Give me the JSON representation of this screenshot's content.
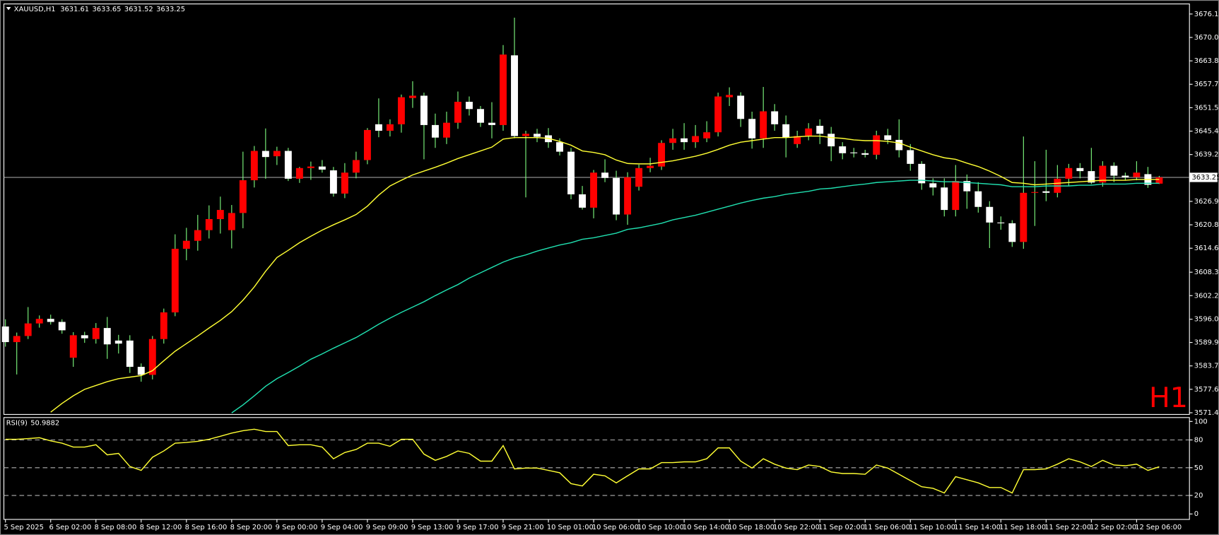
{
  "chart_data": [
    {
      "type": "candlestick",
      "symbol": "XAUUSD,H1",
      "timeframe_label": "H1",
      "up_color": "#ff0000",
      "down_color": "#ffffff",
      "wick_color": "#80ff80",
      "price_line_color": "#b0b0b0",
      "categories": [
        "5 Sep 2025",
        null,
        null,
        null,
        "6 Sep 02:00",
        null,
        null,
        null,
        "8 Sep 08:00",
        null,
        null,
        null,
        "8 Sep 12:00",
        null,
        null,
        null,
        "8 Sep 16:00",
        null,
        null,
        null,
        "8 Sep 20:00",
        null,
        null,
        null,
        "9 Sep 00:00",
        null,
        null,
        null,
        "9 Sep 04:00",
        null,
        null,
        null,
        "9 Sep 09:00",
        null,
        null,
        null,
        "9 Sep 13:00",
        null,
        null,
        null,
        "9 Sep 17:00",
        null,
        null,
        null,
        "9 Sep 21:00",
        null,
        null,
        null,
        "10 Sep 01:00",
        null,
        null,
        null,
        "10 Sep 06:00",
        null,
        null,
        null,
        "10 Sep 10:00",
        null,
        null,
        null,
        "10 Sep 14:00",
        null,
        null,
        null,
        "10 Sep 18:00",
        null,
        null,
        null,
        "10 Sep 22:00",
        null,
        null,
        null,
        "11 Sep 02:00",
        null,
        null,
        null,
        "11 Sep 06:00",
        null,
        null,
        null,
        "11 Sep 10:00",
        null,
        null,
        null,
        "11 Sep 14:00",
        null,
        null,
        null,
        "11 Sep 18:00",
        null,
        null,
        null,
        "11 Sep 22:00",
        null,
        null,
        null,
        "12 Sep 02:00",
        null,
        null,
        null,
        "12 Sep 06:00",
        null,
        null
      ],
      "ohlc": [
        [
          3594.1,
          3596.0,
          3588.8,
          3590.0
        ],
        [
          3590.0,
          3592.5,
          3581.5,
          3591.6
        ],
        [
          3591.6,
          3599.2,
          3590.8,
          3594.9
        ],
        [
          3594.9,
          3597.0,
          3593.8,
          3596.1
        ],
        [
          3596.1,
          3597.2,
          3594.6,
          3595.3
        ],
        [
          3595.3,
          3596.0,
          3592.2,
          3593.1
        ],
        [
          3585.9,
          3592.6,
          3583.5,
          3591.8
        ],
        [
          3591.8,
          3592.7,
          3589.8,
          3591.0
        ],
        [
          3590.8,
          3595.0,
          3589.6,
          3593.7
        ],
        [
          3593.7,
          3596.6,
          3585.6,
          3589.4
        ],
        [
          3590.4,
          3591.9,
          3587.0,
          3589.6
        ],
        [
          3590.4,
          3591.8,
          3581.9,
          3583.5
        ],
        [
          3583.5,
          3584.4,
          3579.6,
          3581.4
        ],
        [
          3581.4,
          3591.6,
          3580.2,
          3590.8
        ],
        [
          3590.8,
          3598.8,
          3589.6,
          3597.8
        ],
        [
          3597.8,
          3618.3,
          3596.8,
          3614.5
        ],
        [
          3614.5,
          3620.0,
          3611.5,
          3616.6
        ],
        [
          3616.6,
          3623.4,
          3614.0,
          3619.4
        ],
        [
          3619.4,
          3625.9,
          3617.2,
          3622.3
        ],
        [
          3622.3,
          3628.2,
          3618.5,
          3624.7
        ],
        [
          3619.4,
          3626.0,
          3614.6,
          3623.9
        ],
        [
          3623.9,
          3640.0,
          3619.9,
          3632.5
        ],
        [
          3632.5,
          3641.5,
          3630.6,
          3640.2
        ],
        [
          3640.2,
          3646.1,
          3632.9,
          3638.6
        ],
        [
          3638.8,
          3641.3,
          3636.5,
          3640.2
        ],
        [
          3640.2,
          3641.0,
          3632.3,
          3632.9
        ],
        [
          3632.9,
          3636.0,
          3631.8,
          3635.7
        ],
        [
          3635.7,
          3637.4,
          3632.6,
          3636.1
        ],
        [
          3636.1,
          3637.8,
          3634.5,
          3635.3
        ],
        [
          3635.1,
          3636.0,
          3628.2,
          3629.0
        ],
        [
          3629.0,
          3637.0,
          3627.8,
          3634.5
        ],
        [
          3634.5,
          3640.0,
          3633.0,
          3637.8
        ],
        [
          3637.8,
          3646.2,
          3636.7,
          3645.7
        ],
        [
          3647.2,
          3654.0,
          3643.8,
          3645.5
        ],
        [
          3645.5,
          3648.5,
          3644.0,
          3647.2
        ],
        [
          3647.2,
          3655.0,
          3645.0,
          3654.3
        ],
        [
          3654.1,
          3658.5,
          3651.5,
          3654.7
        ],
        [
          3654.7,
          3655.5,
          3638.0,
          3647.0
        ],
        [
          3647.0,
          3650.0,
          3641.0,
          3643.7
        ],
        [
          3643.7,
          3650.5,
          3642.0,
          3647.6
        ],
        [
          3647.6,
          3655.8,
          3646.0,
          3653.1
        ],
        [
          3653.1,
          3654.5,
          3649.5,
          3651.2
        ],
        [
          3651.2,
          3652.0,
          3646.5,
          3647.6
        ],
        [
          3647.6,
          3653.0,
          3643.5,
          3647.0
        ],
        [
          3647.0,
          3668.0,
          3645.5,
          3665.5
        ],
        [
          3665.3,
          3675.2,
          3643.5,
          3644.1
        ],
        [
          3644.1,
          3645.5,
          3628.0,
          3644.7
        ],
        [
          3644.7,
          3646.0,
          3642.5,
          3643.9
        ],
        [
          3644.3,
          3646.2,
          3641.0,
          3642.5
        ],
        [
          3642.5,
          3643.5,
          3639.0,
          3640.0
        ],
        [
          3640.0,
          3641.0,
          3627.5,
          3628.8
        ],
        [
          3628.8,
          3631.0,
          3624.8,
          3625.3
        ],
        [
          3625.3,
          3635.2,
          3622.5,
          3634.5
        ],
        [
          3634.5,
          3638.0,
          3632.0,
          3633.1
        ],
        [
          3633.1,
          3635.0,
          3622.0,
          3623.5
        ],
        [
          3623.5,
          3634.6,
          3620.8,
          3633.3
        ],
        [
          3630.8,
          3636.6,
          3629.8,
          3635.7
        ],
        [
          3635.7,
          3638.4,
          3634.6,
          3636.3
        ],
        [
          3636.1,
          3643.0,
          3635.2,
          3642.3
        ],
        [
          3642.3,
          3646.0,
          3640.5,
          3643.5
        ],
        [
          3643.5,
          3647.5,
          3640.5,
          3642.5
        ],
        [
          3642.5,
          3647.0,
          3641.0,
          3644.1
        ],
        [
          3643.5,
          3648.0,
          3642.5,
          3645.1
        ],
        [
          3645.1,
          3655.5,
          3644.0,
          3654.5
        ],
        [
          3654.3,
          3656.9,
          3652.0,
          3654.9
        ],
        [
          3654.7,
          3655.6,
          3646.5,
          3648.6
        ],
        [
          3648.6,
          3650.5,
          3640.8,
          3643.5
        ],
        [
          3643.5,
          3657.0,
          3641.0,
          3650.6
        ],
        [
          3650.6,
          3652.5,
          3645.5,
          3647.2
        ],
        [
          3647.2,
          3649.5,
          3638.5,
          3643.7
        ],
        [
          3642.0,
          3645.5,
          3641.0,
          3644.1
        ],
        [
          3644.1,
          3647.5,
          3643.0,
          3646.1
        ],
        [
          3646.8,
          3648.5,
          3642.0,
          3644.7
        ],
        [
          3644.7,
          3646.5,
          3637.5,
          3641.4
        ],
        [
          3641.4,
          3642.5,
          3638.0,
          3639.6
        ],
        [
          3639.8,
          3641.0,
          3638.5,
          3639.6
        ],
        [
          3639.6,
          3640.5,
          3638.5,
          3639.2
        ],
        [
          3639.2,
          3645.5,
          3638.0,
          3644.3
        ],
        [
          3644.3,
          3646.0,
          3642.0,
          3643.1
        ],
        [
          3643.1,
          3648.5,
          3638.5,
          3640.4
        ],
        [
          3640.4,
          3642.0,
          3635.0,
          3636.8
        ],
        [
          3636.8,
          3637.5,
          3630.0,
          3631.7
        ],
        [
          3631.7,
          3633.0,
          3628.5,
          3630.6
        ],
        [
          3630.6,
          3633.0,
          3623.0,
          3624.7
        ],
        [
          3624.7,
          3636.5,
          3623.0,
          3632.3
        ],
        [
          3632.3,
          3634.0,
          3625.0,
          3629.6
        ],
        [
          3629.6,
          3632.0,
          3624.0,
          3625.5
        ],
        [
          3625.5,
          3627.0,
          3614.7,
          3621.4
        ],
        [
          3621.4,
          3623.0,
          3619.5,
          3621.2
        ],
        [
          3621.2,
          3622.0,
          3615.0,
          3616.3
        ],
        [
          3616.3,
          3644.0,
          3614.5,
          3629.2
        ],
        [
          3629.2,
          3637.5,
          3620.5,
          3629.4
        ],
        [
          3629.6,
          3640.5,
          3627.0,
          3629.2
        ],
        [
          3629.2,
          3636.5,
          3628.0,
          3632.9
        ],
        [
          3632.9,
          3636.8,
          3631.0,
          3635.7
        ],
        [
          3635.7,
          3637.0,
          3633.0,
          3634.9
        ],
        [
          3634.9,
          3641.0,
          3631.5,
          3631.9
        ],
        [
          3631.9,
          3637.5,
          3630.8,
          3636.3
        ],
        [
          3636.3,
          3637.2,
          3632.0,
          3633.7
        ],
        [
          3633.7,
          3634.5,
          3632.5,
          3633.3
        ],
        [
          3633.3,
          3637.5,
          3632.5,
          3634.5
        ],
        [
          3634.1,
          3636.0,
          3630.5,
          3631.3
        ],
        [
          3631.61,
          3633.65,
          3631.52,
          3633.25
        ]
      ],
      "series": [
        {
          "color": "#ffff33",
          "values": [
            null,
            null,
            null,
            null,
            3571.6,
            3573.9,
            3575.9,
            3577.6,
            3578.6,
            3579.6,
            3580.4,
            3580.8,
            3581.2,
            3582.5,
            3585.1,
            3587.6,
            3589.6,
            3591.6,
            3593.7,
            3595.7,
            3598.0,
            3601.0,
            3604.5,
            3608.6,
            3612.2,
            3614.1,
            3616.1,
            3617.8,
            3619.4,
            3620.8,
            3622.1,
            3623.5,
            3625.7,
            3628.6,
            3631.0,
            3632.5,
            3633.9,
            3634.9,
            3635.9,
            3637.0,
            3638.2,
            3639.2,
            3640.2,
            3641.2,
            3643.3,
            3643.7,
            3643.7,
            3643.7,
            3643.5,
            3642.7,
            3641.7,
            3640.2,
            3639.8,
            3639.2,
            3637.8,
            3636.9,
            3636.8,
            3636.8,
            3637.2,
            3637.6,
            3638.2,
            3638.8,
            3639.6,
            3640.6,
            3641.7,
            3642.5,
            3642.9,
            3643.3,
            3643.7,
            3643.7,
            3643.9,
            3644.1,
            3644.1,
            3643.7,
            3643.5,
            3643.1,
            3642.9,
            3642.9,
            3642.7,
            3642.3,
            3641.2,
            3640.2,
            3639.2,
            3638.4,
            3638.0,
            3637.0,
            3636.1,
            3634.9,
            3633.5,
            3631.9,
            3631.7,
            3631.3,
            3631.5,
            3631.7,
            3631.9,
            3632.1,
            3632.3,
            3632.5,
            3632.5,
            3632.5,
            3632.7,
            3632.7,
            3632.7
          ]
        },
        {
          "color": "#20e0b0",
          "values": [
            null,
            null,
            null,
            null,
            null,
            null,
            null,
            null,
            null,
            null,
            null,
            null,
            null,
            null,
            null,
            null,
            null,
            null,
            null,
            null,
            3571.4,
            3573.5,
            3575.9,
            3578.4,
            3580.4,
            3582.0,
            3583.7,
            3585.5,
            3586.9,
            3588.4,
            3589.8,
            3591.2,
            3592.9,
            3594.7,
            3596.3,
            3597.8,
            3599.2,
            3600.6,
            3602.2,
            3603.7,
            3605.1,
            3606.8,
            3608.2,
            3609.6,
            3611.0,
            3612.1,
            3612.9,
            3613.9,
            3614.7,
            3615.5,
            3616.1,
            3617.0,
            3617.4,
            3618.0,
            3618.6,
            3619.6,
            3620.0,
            3620.6,
            3621.2,
            3622.1,
            3622.7,
            3623.3,
            3624.1,
            3624.9,
            3625.7,
            3626.5,
            3627.2,
            3627.8,
            3628.2,
            3628.8,
            3629.2,
            3629.6,
            3630.2,
            3630.4,
            3630.8,
            3631.2,
            3631.5,
            3631.9,
            3632.1,
            3632.3,
            3632.5,
            3632.5,
            3632.3,
            3632.1,
            3632.1,
            3631.9,
            3631.7,
            3631.5,
            3631.3,
            3630.8,
            3630.8,
            3630.8,
            3631.0,
            3631.0,
            3631.0,
            3631.2,
            3631.2,
            3631.5,
            3631.5,
            3631.5,
            3631.7,
            3631.7,
            3631.7
          ]
        }
      ],
      "ylim": [
        3571.0,
        3678.8
      ],
      "yticks": [
        3676.15,
        {
          "value": 3670,
          "label": "3670.00"
        },
        3663.85,
        {
          "value": 3657.7,
          "label": "3657.70"
        },
        3651.55,
        {
          "value": 3645.4,
          "label": "3645.40"
        },
        3639.25,
        3626.95,
        {
          "value": 3620.8,
          "label": "3620.80"
        },
        3614.65,
        3608.35,
        {
          "value": 3602.2,
          "label": "3602.20"
        },
        {
          "value": 3596,
          "label": "3596.00"
        },
        {
          "value": 3589.9,
          "label": "3589.90"
        },
        3583.75,
        {
          "value": 3577.6,
          "label": "3577.60"
        },
        3571.45
      ]
    },
    {
      "type": "line",
      "title": "RSI(9)",
      "color": "#ffff33",
      "values": [
        80.7,
        80.7,
        81.5,
        82.4,
        79.0,
        76.5,
        72.3,
        72.3,
        74.8,
        63.9,
        65.5,
        51.3,
        47.1,
        61.3,
        68.1,
        76.5,
        77.3,
        78.5,
        80.7,
        84.0,
        87.4,
        90.0,
        91.6,
        89.1,
        89.1,
        73.9,
        74.8,
        74.8,
        72.3,
        59.7,
        66.4,
        69.7,
        76.5,
        76.5,
        73.1,
        80.7,
        80.7,
        64.7,
        58.0,
        62.2,
        68.1,
        65.5,
        57.1,
        57.1,
        73.9,
        48.7,
        49.6,
        49.6,
        47.1,
        44.5,
        32.8,
        30.3,
        42.9,
        41.2,
        33.6,
        41.2,
        48.7,
        48.7,
        55.5,
        55.5,
        56.3,
        56.3,
        59.7,
        71.4,
        71.4,
        57.1,
        49.6,
        59.7,
        53.8,
        49.6,
        47.9,
        52.9,
        51.3,
        45.4,
        43.7,
        43.7,
        42.9,
        52.9,
        49.6,
        42.9,
        36.1,
        29.4,
        27.7,
        22.7,
        40.3,
        37.0,
        33.6,
        28.6,
        28.6,
        22.7,
        47.9,
        47.9,
        48.7,
        53.8,
        59.7,
        56.3,
        51.3,
        58.0,
        52.9,
        52.1,
        53.8,
        47.1,
        50.9882
      ],
      "levels": [
        80,
        50,
        20
      ],
      "level_color": "#b0b0b0",
      "ylim": [
        -5.9,
        104.2
      ],
      "yticks": [
        100,
        80,
        50,
        20,
        0
      ]
    }
  ]
}
